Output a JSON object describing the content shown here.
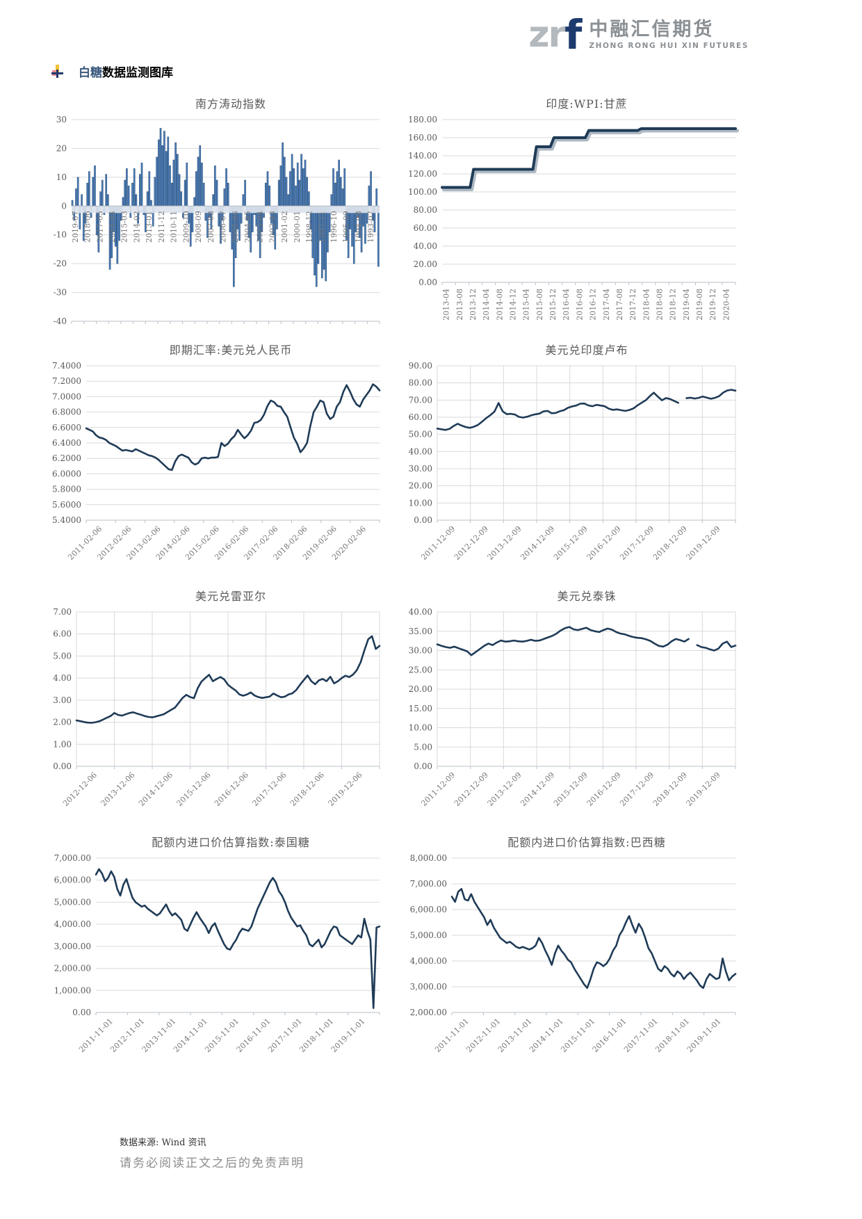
{
  "header": {
    "logo": {
      "zr": "zr",
      "f": "f",
      "cn": "中融汇信期货",
      "en": "ZHONG RONG HUI XIN FUTURES"
    },
    "section_title": {
      "highlight": "白糖",
      "rest": "数据监测图库"
    }
  },
  "footer": {
    "source": "数据来源: Wind 资讯",
    "disclaimer": "请务必阅读正文之后的免责声明"
  },
  "colors": {
    "line": "#1f3b57",
    "bar_fill": "#4a7ebc",
    "bar_stroke": "#24456b",
    "grid": "#d9d9d9",
    "axis": "#b9bfc7",
    "zero_band": "#dce3ed",
    "shadow": "#aeb9c3",
    "label_text": "#595959"
  },
  "chart_data": [
    {
      "title": "南方涛动指数",
      "type": "bar",
      "grid": "h",
      "x_style": "vertical-at-zero",
      "ylim": [
        -40,
        30
      ],
      "ystep": 10,
      "y_decimals": 0,
      "y_thousands": false,
      "x_labels": [
        "2019-07",
        "2018-06",
        "2017-05",
        "2016-04",
        "2015-03",
        "2014-02",
        "2013-01",
        "2011-12",
        "2010-11",
        "2009-10",
        "2008-09",
        "2007-08",
        "2006-07",
        "2005-06",
        "2004-05",
        "2003-04",
        "2002-03",
        "2001-02",
        "2000-01",
        "1998-12",
        "1997-11",
        "1996-10",
        "1995-09",
        "1994-08",
        "1993-07"
      ],
      "values": [
        2,
        -5,
        6,
        10,
        -8,
        4,
        -12,
        -6,
        8,
        12,
        -4,
        10,
        14,
        -10,
        -16,
        5,
        9,
        -3,
        11,
        4,
        -22,
        -18,
        -9,
        -14,
        -20,
        -12,
        -5,
        3,
        9,
        13,
        7,
        -4,
        8,
        13,
        4,
        -6,
        11,
        15,
        -3,
        -9,
        5,
        12,
        2,
        -7,
        10,
        17,
        23,
        27,
        21,
        26,
        19,
        24,
        14,
        8,
        16,
        22,
        18,
        11,
        5,
        -4,
        9,
        15,
        -6,
        -14,
        -9,
        3,
        12,
        17,
        21,
        15,
        8,
        -5,
        -11,
        -4,
        -8,
        4,
        14,
        9,
        -7,
        -13,
        -5,
        6,
        13,
        8,
        -9,
        -15,
        -28,
        -18,
        -8,
        -12,
        -6,
        4,
        9,
        -5,
        -11,
        -16,
        -9,
        -3,
        -7,
        -12,
        -18,
        -9,
        -4,
        8,
        12,
        7,
        -6,
        -10,
        -15,
        -8,
        9,
        14,
        22,
        17,
        10,
        4,
        12,
        18,
        13,
        7,
        15,
        9,
        18,
        13,
        16,
        10,
        5,
        -8,
        -18,
        -24,
        -28,
        -20,
        -12,
        -25,
        -22,
        -26,
        -16,
        -9,
        4,
        13,
        8,
        12,
        16,
        10,
        6,
        13,
        -12,
        -18,
        -8,
        -14,
        -20,
        -9,
        -4,
        -11,
        -16,
        -7,
        -13,
        -6,
        7,
        12,
        -5,
        -9,
        6,
        -21
      ]
    },
    {
      "title": "印度:WPI:甘蔗",
      "type": "line",
      "grid": "h",
      "x_style": "vertical-below",
      "ylim": [
        0,
        180
      ],
      "ystep": 20,
      "y_decimals": 2,
      "y_thousands": false,
      "lw": 4,
      "shadow": true,
      "x_labels": [
        "2013-04",
        "2013-08",
        "2013-12",
        "2014-04",
        "2014-08",
        "2014-12",
        "2015-04",
        "2015-08",
        "2015-12",
        "2016-04",
        "2016-08",
        "2016-12",
        "2017-04",
        "2017-08",
        "2017-12",
        "2018-04",
        "2018-08",
        "2018-12",
        "2019-04",
        "2019-08",
        "2019-12",
        "2020-04"
      ],
      "values": [
        105,
        105,
        105,
        105,
        105,
        105,
        105,
        105,
        105,
        125,
        125,
        125,
        125,
        125,
        125,
        125,
        125,
        125,
        125,
        125,
        125,
        125,
        125,
        125,
        125,
        125,
        125,
        150,
        150,
        150,
        150,
        150,
        160,
        160,
        160,
        160,
        160,
        160,
        160,
        160,
        160,
        160,
        168,
        168,
        168,
        168,
        168,
        168,
        168,
        168,
        168,
        168,
        168,
        168,
        168,
        168,
        168,
        170,
        170,
        170,
        170,
        170,
        170,
        170,
        170,
        170,
        170,
        170,
        170,
        170,
        170,
        170,
        170,
        170,
        170,
        170,
        170,
        170,
        170,
        170,
        170,
        170,
        170,
        170,
        170
      ]
    },
    {
      "title": "即期汇率:美元兑人民币",
      "type": "line",
      "grid": "h",
      "x_style": "diag",
      "ylim": [
        5.4,
        7.4
      ],
      "ystep": 0.2,
      "y_decimals": 4,
      "y_thousands": false,
      "lw": 2.6,
      "x_labels": [
        "2011-02-06",
        "2012-02-06",
        "2013-02-06",
        "2014-02-06",
        "2015-02-06",
        "2016-02-06",
        "2017-02-06",
        "2018-02-06",
        "2019-02-06",
        "2020-02-06"
      ],
      "values": [
        6.59,
        6.57,
        6.55,
        6.5,
        6.47,
        6.46,
        6.44,
        6.4,
        6.38,
        6.36,
        6.33,
        6.3,
        6.31,
        6.3,
        6.29,
        6.32,
        6.3,
        6.28,
        6.26,
        6.24,
        6.23,
        6.21,
        6.18,
        6.14,
        6.1,
        6.06,
        6.05,
        6.16,
        6.23,
        6.25,
        6.23,
        6.21,
        6.15,
        6.12,
        6.14,
        6.2,
        6.21,
        6.2,
        6.21,
        6.21,
        6.22,
        6.4,
        6.36,
        6.39,
        6.45,
        6.49,
        6.57,
        6.51,
        6.46,
        6.5,
        6.56,
        6.66,
        6.67,
        6.7,
        6.77,
        6.88,
        6.95,
        6.93,
        6.88,
        6.87,
        6.8,
        6.74,
        6.6,
        6.47,
        6.39,
        6.28,
        6.33,
        6.4,
        6.62,
        6.8,
        6.87,
        6.95,
        6.93,
        6.78,
        6.71,
        6.74,
        6.87,
        6.93,
        7.06,
        7.15,
        7.07,
        6.97,
        6.9,
        6.87,
        6.96,
        7.02,
        7.08,
        7.16,
        7.13,
        7.08
      ]
    },
    {
      "title": "美元兑印度卢布",
      "type": "line",
      "grid": "hv",
      "x_style": "diag",
      "ylim": [
        0,
        90
      ],
      "ystep": 10,
      "y_decimals": 2,
      "y_thousands": false,
      "lw": 2.6,
      "x_labels": [
        "2011-12-09",
        "2012-12-09",
        "2013-12-09",
        "2014-12-09",
        "2015-12-09",
        "2016-12-09",
        "2017-12-09",
        "2018-12-09",
        "2019-12-09"
      ],
      "values": [
        53.4,
        53.0,
        52.6,
        53.2,
        54.9,
        56.2,
        55.1,
        54.3,
        53.8,
        54.5,
        55.6,
        57.5,
        59.5,
        61.2,
        63.3,
        68.3,
        63.5,
        61.8,
        62.0,
        61.6,
        60.2,
        59.8,
        60.3,
        61.1,
        61.7,
        62.1,
        63.4,
        63.7,
        62.3,
        62.5,
        63.5,
        64.1,
        65.5,
        66.3,
        66.8,
        67.9,
        68.0,
        66.9,
        66.4,
        67.2,
        66.8,
        66.4,
        65.0,
        64.3,
        64.6,
        64.1,
        63.7,
        64.2,
        65.1,
        66.9,
        68.4,
        69.8,
        72.2,
        74.3,
        72.0,
        69.9,
        71.2,
        70.6,
        69.5,
        68.4,
        null,
        71.1,
        71.4,
        70.9,
        71.3,
        72.1,
        71.4,
        70.8,
        71.3,
        72.3,
        74.4,
        75.6,
        76.0,
        75.5
      ]
    },
    {
      "title": "美元兑雷亚尔",
      "type": "line",
      "grid": "hv",
      "x_style": "diag",
      "ylim": [
        0,
        7
      ],
      "ystep": 1,
      "y_decimals": 2,
      "y_thousands": false,
      "lw": 2.6,
      "x_labels": [
        "2012-12-06",
        "2013-12-06",
        "2014-12-06",
        "2015-12-06",
        "2016-12-06",
        "2017-12-06",
        "2018-12-06",
        "2019-12-06"
      ],
      "values": [
        2.08,
        2.05,
        2.01,
        1.98,
        1.97,
        2.0,
        2.04,
        2.12,
        2.2,
        2.28,
        2.42,
        2.33,
        2.3,
        2.36,
        2.42,
        2.45,
        2.39,
        2.34,
        2.28,
        2.24,
        2.22,
        2.26,
        2.31,
        2.36,
        2.46,
        2.56,
        2.66,
        2.88,
        3.1,
        3.24,
        3.14,
        3.09,
        3.54,
        3.84,
        4.0,
        4.15,
        3.86,
        3.96,
        4.05,
        3.94,
        3.7,
        3.56,
        3.44,
        3.26,
        3.2,
        3.26,
        3.35,
        3.21,
        3.14,
        3.1,
        3.13,
        3.16,
        3.3,
        3.21,
        3.13,
        3.16,
        3.26,
        3.31,
        3.46,
        3.7,
        3.91,
        4.12,
        3.86,
        3.72,
        3.9,
        3.96,
        3.86,
        4.06,
        3.76,
        3.86,
        4.0,
        4.11,
        4.05,
        4.16,
        4.36,
        4.72,
        5.26,
        5.76,
        5.9,
        5.32,
        5.46
      ]
    },
    {
      "title": "美元兑泰铢",
      "type": "line",
      "grid": "hv",
      "x_style": "diag",
      "ylim": [
        0,
        40
      ],
      "ystep": 5,
      "y_decimals": 2,
      "y_thousands": false,
      "lw": 2.6,
      "x_labels": [
        "2011-12-09",
        "2012-12-09",
        "2013-12-09",
        "2014-12-09",
        "2015-12-09",
        "2016-12-09",
        "2017-12-09",
        "2018-12-09",
        "2019-12-09"
      ],
      "values": [
        31.6,
        31.2,
        30.9,
        30.7,
        31.0,
        30.6,
        30.2,
        29.8,
        28.8,
        29.6,
        30.4,
        31.2,
        31.8,
        31.4,
        32.1,
        32.6,
        32.3,
        32.4,
        32.6,
        32.4,
        32.3,
        32.5,
        32.8,
        32.5,
        32.6,
        33.0,
        33.4,
        33.8,
        34.4,
        35.2,
        35.8,
        36.1,
        35.5,
        35.3,
        35.6,
        35.9,
        35.3,
        35.0,
        34.8,
        35.3,
        35.7,
        35.4,
        34.8,
        34.4,
        34.2,
        33.8,
        33.5,
        33.3,
        33.2,
        32.9,
        32.5,
        31.8,
        31.2,
        31.0,
        31.5,
        32.4,
        33.0,
        32.7,
        32.3,
        33.0,
        null,
        31.4,
        30.9,
        30.7,
        30.3,
        30.0,
        30.5,
        31.8,
        32.3,
        30.9,
        31.3
      ]
    },
    {
      "title": "配额内进口价估算指数:泰国糖",
      "type": "line",
      "grid": "h",
      "x_style": "diag",
      "ylim": [
        0,
        7000
      ],
      "ystep": 1000,
      "y_decimals": 2,
      "y_thousands": true,
      "lw": 2.6,
      "x_labels": [
        "2011-11-01",
        "2012-11-01",
        "2013-11-01",
        "2014-11-01",
        "2015-11-01",
        "2016-11-01",
        "2017-11-01",
        "2018-11-01",
        "2019-11-01"
      ],
      "values": [
        6250,
        6500,
        6300,
        5950,
        6100,
        6400,
        6150,
        5600,
        5300,
        5800,
        6050,
        5600,
        5200,
        5000,
        4900,
        4800,
        4850,
        4700,
        4600,
        4500,
        4400,
        4500,
        4700,
        4900,
        4600,
        4400,
        4500,
        4350,
        4200,
        3800,
        3700,
        4000,
        4300,
        4550,
        4300,
        4100,
        3900,
        3600,
        3900,
        4050,
        3700,
        3400,
        3100,
        2900,
        2850,
        3100,
        3300,
        3600,
        3800,
        3750,
        3700,
        3900,
        4300,
        4700,
        5000,
        5300,
        5600,
        5900,
        6100,
        5900,
        5500,
        5300,
        5000,
        4600,
        4300,
        4100,
        3900,
        3950,
        3700,
        3500,
        3100,
        3000,
        3150,
        3300,
        2950,
        3100,
        3400,
        3700,
        3900,
        3850,
        3500,
        3400,
        3300,
        3200,
        3100,
        3300,
        3500,
        3400,
        4250,
        3700,
        3300,
        200,
        3850,
        3900
      ]
    },
    {
      "title": "配额内进口价估算指数:巴西糖",
      "type": "line",
      "grid": "h",
      "x_style": "diag",
      "ylim": [
        2000,
        8000
      ],
      "ystep": 1000,
      "y_decimals": 2,
      "y_thousands": true,
      "lw": 2.6,
      "x_labels": [
        "2011-11-01",
        "2012-11-01",
        "2013-11-01",
        "2014-11-01",
        "2015-11-01",
        "2016-11-01",
        "2017-11-01",
        "2018-11-01",
        "2019-11-01"
      ],
      "values": [
        6500,
        6300,
        6700,
        6800,
        6400,
        6350,
        6600,
        6300,
        6100,
        5900,
        5700,
        5400,
        5600,
        5300,
        5100,
        4900,
        4800,
        4700,
        4750,
        4650,
        4550,
        4500,
        4550,
        4500,
        4450,
        4500,
        4600,
        4900,
        4700,
        4400,
        4150,
        3850,
        4300,
        4600,
        4400,
        4250,
        4050,
        3950,
        3700,
        3500,
        3300,
        3100,
        2950,
        3300,
        3700,
        3950,
        3900,
        3800,
        3900,
        4100,
        4400,
        4600,
        5000,
        5200,
        5500,
        5750,
        5400,
        5100,
        5450,
        5250,
        4900,
        4500,
        4300,
        4000,
        3700,
        3600,
        3800,
        3700,
        3500,
        3400,
        3600,
        3500,
        3300,
        3450,
        3550,
        3400,
        3250,
        3050,
        2950,
        3300,
        3500,
        3400,
        3300,
        3350,
        4100,
        3600,
        3250,
        3400,
        3500
      ]
    }
  ]
}
